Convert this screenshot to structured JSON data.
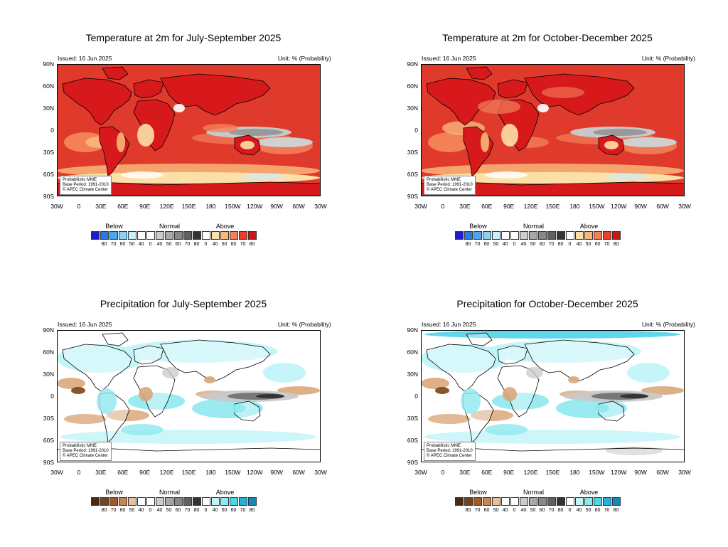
{
  "panels": [
    {
      "id": "temp-jas",
      "title": "Temperature at 2m for July-September 2025",
      "issued": "Issued: 16 Jun 2025",
      "unit": "Unit: % (Probability)",
      "variable": "temperature",
      "base_colors": {
        "land": "#d7191c",
        "ocean": "#e03a2c",
        "near_normal": "#999999",
        "pale": "#fde0a8"
      }
    },
    {
      "id": "temp-ond",
      "title": "Temperature at 2m for October-December 2025",
      "issued": "Issued: 16 Jun 2025",
      "unit": "Unit: % (Probability)",
      "variable": "temperature",
      "base_colors": {
        "land": "#d7191c",
        "ocean": "#e03a2c",
        "near_normal": "#999999",
        "pale": "#fde0a8"
      }
    },
    {
      "id": "precip-jas",
      "title": "Precipitation for July-September 2025",
      "issued": "Issued: 16 Jun 2025",
      "unit": "Unit: % (Probability)",
      "variable": "precipitation",
      "base_colors": {
        "above": "#8ee8f0",
        "below": "#d9a77a",
        "near_normal": "#bbbbbb",
        "blank": "#ffffff"
      }
    },
    {
      "id": "precip-ond",
      "title": "Precipitation for October-December 2025",
      "issued": "Issued: 16 Jun 2025",
      "unit": "Unit: % (Probability)",
      "variable": "precipitation",
      "base_colors": {
        "above": "#8ee8f0",
        "below": "#d9a77a",
        "near_normal": "#bbbbbb",
        "blank": "#ffffff"
      }
    }
  ],
  "lat_labels": [
    "90N",
    "60N",
    "30N",
    "0",
    "30S",
    "60S",
    "90S"
  ],
  "lon_labels": [
    "30W",
    "0",
    "30E",
    "60E",
    "90E",
    "120E",
    "150E",
    "180",
    "150W",
    "120W",
    "90W",
    "60W",
    "30W"
  ],
  "info": {
    "line1": "Probabilistic MME",
    "line2": "Base Period: 1991-2010",
    "line3": "© APEC Climate Center"
  },
  "legend": {
    "below_label": "Below",
    "normal_label": "Normal",
    "above_label": "Above",
    "numbers": [
      "80",
      "70",
      "60",
      "50",
      "40",
      "0",
      "40",
      "50",
      "60",
      "70",
      "80",
      "0",
      "40",
      "50",
      "60",
      "70",
      "80"
    ],
    "temp_colors": [
      "#1d1dc9",
      "#2a7be0",
      "#4ca6ec",
      "#8dd0f4",
      "#c8f0fa",
      "#ffffff",
      "#ffffff",
      "#cccccc",
      "#a8a8a8",
      "#888888",
      "#606060",
      "#333333",
      "#ffffff",
      "#fde0a8",
      "#f9b77a",
      "#f2805a",
      "#e8402a",
      "#c81818"
    ],
    "precip_colors": [
      "#4a2a10",
      "#7a4218",
      "#a05a2a",
      "#c48652",
      "#e6c09c",
      "#ffffff",
      "#ffffff",
      "#cccccc",
      "#a8a8a8",
      "#888888",
      "#606060",
      "#333333",
      "#ffffff",
      "#bff4f8",
      "#8ee8f0",
      "#4fd4e8",
      "#2ab0d8",
      "#1488b8"
    ]
  }
}
